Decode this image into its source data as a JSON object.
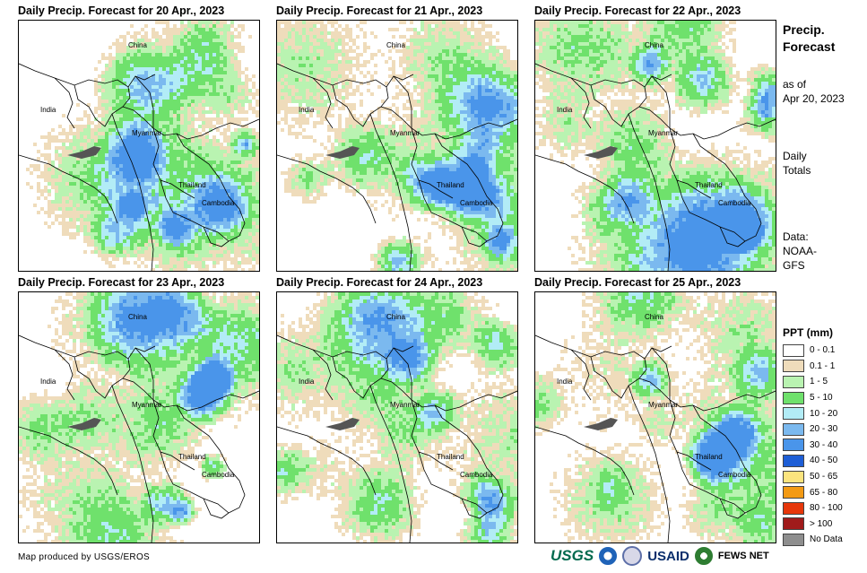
{
  "panels": [
    {
      "title": "Daily Precip. Forecast for 20 Apr., 2023",
      "seed": 11
    },
    {
      "title": "Daily Precip. Forecast for 21 Apr., 2023",
      "seed": 23
    },
    {
      "title": "Daily Precip. Forecast for 22 Apr., 2023",
      "seed": 37
    },
    {
      "title": "Daily Precip. Forecast for 23 Apr., 2023",
      "seed": 41
    },
    {
      "title": "Daily Precip. Forecast for 24 Apr., 2023",
      "seed": 53
    },
    {
      "title": "Daily Precip. Forecast for 25 Apr., 2023",
      "seed": 67
    }
  ],
  "map_labels": {
    "china": "China",
    "india": "India",
    "myanmar": "Myanmar",
    "thailand": "Thailand",
    "cambodia": "Cambodia"
  },
  "side": {
    "title_line1": "Precip.",
    "title_line2": "Forecast",
    "asof_line1": "as of",
    "asof_line2": "Apr 20, 2023",
    "daily_line1": "Daily",
    "daily_line2": "Totals",
    "data_line1": "Data:",
    "data_line2": "NOAA-",
    "data_line3": "GFS"
  },
  "legend": {
    "title": "PPT (mm)",
    "items": [
      {
        "label": "0 - 0.1",
        "color": "#ffffff"
      },
      {
        "label": "0.1 - 1",
        "color": "#efdcbb"
      },
      {
        "label": "1 - 5",
        "color": "#b9f3b1"
      },
      {
        "label": "5 - 10",
        "color": "#6fe16c"
      },
      {
        "label": "10 - 20",
        "color": "#b2ecf6"
      },
      {
        "label": "20 - 30",
        "color": "#7bb9ef"
      },
      {
        "label": "30 - 40",
        "color": "#4a95ea"
      },
      {
        "label": "40 - 50",
        "color": "#1e5ed6"
      },
      {
        "label": "50 - 65",
        "color": "#fbe47e"
      },
      {
        "label": "65 - 80",
        "color": "#f39a14"
      },
      {
        "label": "80 - 100",
        "color": "#e6370b"
      },
      {
        "label": "> 100",
        "color": "#a01b1b"
      },
      {
        "label": "No Data",
        "color": "#8e8e8e"
      }
    ]
  },
  "credit": "Map produced by USGS/EROS",
  "logos": {
    "usgs": "USGS",
    "usaid": "USAID",
    "fewsnet": "FEWS NET"
  }
}
